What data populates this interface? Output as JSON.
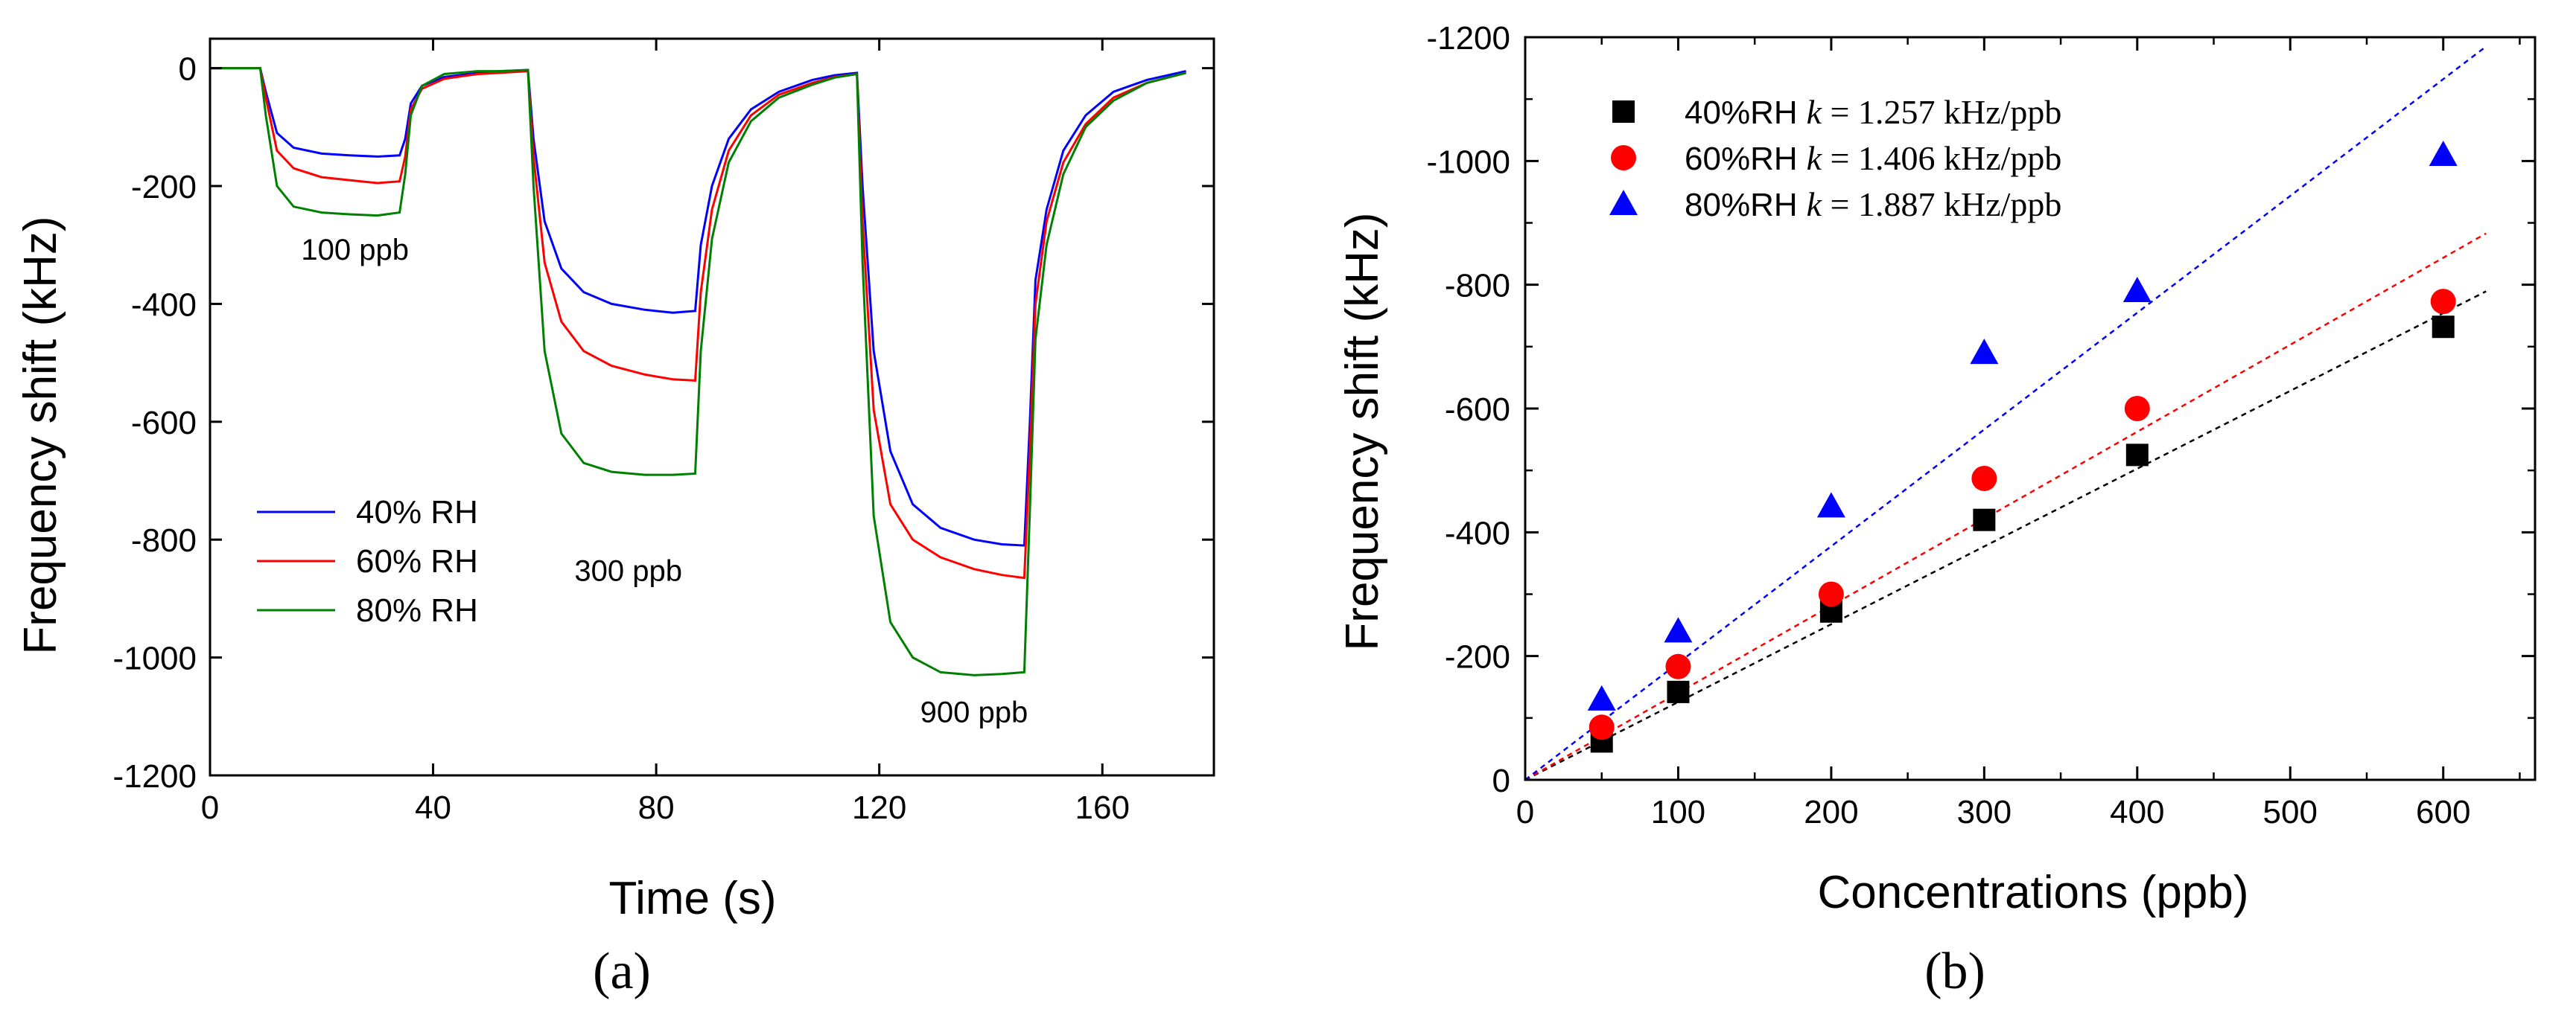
{
  "chart_data": [
    {
      "type": "line",
      "panel_label": "(a)",
      "xlabel": "Time (s)",
      "ylabel": "Frequency shift (kHz)",
      "xlim": [
        0,
        180
      ],
      "ylim": [
        -1200,
        50
      ],
      "xticks": [
        0,
        40,
        80,
        120,
        160
      ],
      "yticks": [
        0,
        -200,
        -400,
        -600,
        -800,
        -1000,
        -1200
      ],
      "grid": false,
      "legend_position": "lower-left",
      "annotations": [
        {
          "text": "100 ppb",
          "x": 26,
          "y": -325
        },
        {
          "text": "300 ppb",
          "x": 75,
          "y": -870
        },
        {
          "text": "900 ppb",
          "x": 137,
          "y": -1110
        }
      ],
      "series": [
        {
          "name": "40% RH",
          "color": "#0000ff",
          "points": [
            [
              0,
              0
            ],
            [
              9,
              0
            ],
            [
              10,
              -40
            ],
            [
              12,
              -110
            ],
            [
              15,
              -135
            ],
            [
              20,
              -145
            ],
            [
              25,
              -148
            ],
            [
              30,
              -150
            ],
            [
              34,
              -148
            ],
            [
              35,
              -120
            ],
            [
              36,
              -60
            ],
            [
              38,
              -30
            ],
            [
              42,
              -15
            ],
            [
              48,
              -8
            ],
            [
              52,
              -5
            ],
            [
              57,
              -3
            ],
            [
              58,
              -120
            ],
            [
              60,
              -260
            ],
            [
              63,
              -340
            ],
            [
              67,
              -380
            ],
            [
              72,
              -400
            ],
            [
              78,
              -410
            ],
            [
              83,
              -415
            ],
            [
              87,
              -412
            ],
            [
              88,
              -300
            ],
            [
              90,
              -200
            ],
            [
              93,
              -120
            ],
            [
              97,
              -70
            ],
            [
              102,
              -40
            ],
            [
              108,
              -20
            ],
            [
              112,
              -12
            ],
            [
              116,
              -8
            ],
            [
              117,
              -200
            ],
            [
              119,
              -480
            ],
            [
              122,
              -650
            ],
            [
              126,
              -740
            ],
            [
              131,
              -780
            ],
            [
              137,
              -800
            ],
            [
              142,
              -808
            ],
            [
              146,
              -810
            ],
            [
              147,
              -600
            ],
            [
              148,
              -360
            ],
            [
              150,
              -240
            ],
            [
              153,
              -140
            ],
            [
              157,
              -80
            ],
            [
              162,
              -40
            ],
            [
              168,
              -20
            ],
            [
              175,
              -5
            ]
          ]
        },
        {
          "name": "60% RH",
          "color": "#ff0000",
          "points": [
            [
              0,
              0
            ],
            [
              9,
              0
            ],
            [
              10,
              -50
            ],
            [
              12,
              -140
            ],
            [
              15,
              -170
            ],
            [
              20,
              -185
            ],
            [
              25,
              -190
            ],
            [
              30,
              -195
            ],
            [
              34,
              -192
            ],
            [
              35,
              -150
            ],
            [
              36,
              -70
            ],
            [
              38,
              -35
            ],
            [
              42,
              -18
            ],
            [
              48,
              -10
            ],
            [
              52,
              -8
            ],
            [
              57,
              -5
            ],
            [
              58,
              -150
            ],
            [
              60,
              -330
            ],
            [
              63,
              -430
            ],
            [
              67,
              -480
            ],
            [
              72,
              -505
            ],
            [
              78,
              -520
            ],
            [
              83,
              -528
            ],
            [
              87,
              -530
            ],
            [
              88,
              -380
            ],
            [
              90,
              -240
            ],
            [
              93,
              -140
            ],
            [
              97,
              -80
            ],
            [
              102,
              -45
            ],
            [
              108,
              -25
            ],
            [
              112,
              -15
            ],
            [
              116,
              -10
            ],
            [
              117,
              -260
            ],
            [
              119,
              -580
            ],
            [
              122,
              -740
            ],
            [
              126,
              -800
            ],
            [
              131,
              -830
            ],
            [
              137,
              -850
            ],
            [
              142,
              -860
            ],
            [
              146,
              -865
            ],
            [
              147,
              -650
            ],
            [
              148,
              -400
            ],
            [
              150,
              -260
            ],
            [
              153,
              -160
            ],
            [
              157,
              -95
            ],
            [
              162,
              -50
            ],
            [
              168,
              -25
            ],
            [
              175,
              -8
            ]
          ]
        },
        {
          "name": "80% RH",
          "color": "#008000",
          "points": [
            [
              0,
              0
            ],
            [
              9,
              0
            ],
            [
              10,
              -80
            ],
            [
              12,
              -200
            ],
            [
              15,
              -235
            ],
            [
              20,
              -245
            ],
            [
              25,
              -248
            ],
            [
              30,
              -250
            ],
            [
              34,
              -245
            ],
            [
              35,
              -180
            ],
            [
              36,
              -80
            ],
            [
              38,
              -30
            ],
            [
              42,
              -10
            ],
            [
              48,
              -5
            ],
            [
              52,
              -5
            ],
            [
              57,
              -3
            ],
            [
              58,
              -200
            ],
            [
              60,
              -480
            ],
            [
              63,
              -620
            ],
            [
              67,
              -670
            ],
            [
              72,
              -685
            ],
            [
              78,
              -690
            ],
            [
              83,
              -690
            ],
            [
              87,
              -688
            ],
            [
              88,
              -480
            ],
            [
              90,
              -290
            ],
            [
              93,
              -160
            ],
            [
              97,
              -90
            ],
            [
              102,
              -50
            ],
            [
              108,
              -28
            ],
            [
              112,
              -16
            ],
            [
              116,
              -10
            ],
            [
              117,
              -330
            ],
            [
              119,
              -760
            ],
            [
              122,
              -940
            ],
            [
              126,
              -1000
            ],
            [
              131,
              -1025
            ],
            [
              137,
              -1030
            ],
            [
              142,
              -1028
            ],
            [
              146,
              -1025
            ],
            [
              147,
              -750
            ],
            [
              148,
              -460
            ],
            [
              150,
              -300
            ],
            [
              153,
              -180
            ],
            [
              157,
              -100
            ],
            [
              162,
              -55
            ],
            [
              168,
              -25
            ],
            [
              175,
              -8
            ]
          ]
        }
      ]
    },
    {
      "type": "scatter",
      "panel_label": "(b)",
      "xlabel": "Concentrations (ppb)",
      "ylabel": "Frequency shift (kHz)",
      "xlim": [
        0,
        660
      ],
      "ylim": [
        0,
        -1200
      ],
      "xticks": [
        0,
        100,
        200,
        300,
        400,
        500,
        600
      ],
      "yticks": [
        0,
        -200,
        -400,
        -600,
        -800,
        -1000,
        -1200
      ],
      "grid": false,
      "legend_position": "top-left",
      "series": [
        {
          "name": "40%RH",
          "legend_fit_var": "k",
          "legend_fit_value": " = 1.257 kHz/ppb",
          "marker": "square",
          "color": "#000000",
          "fit_color": "#000000",
          "fit_slope": -1.257,
          "x": [
            50,
            100,
            200,
            300,
            400,
            600
          ],
          "y": [
            -62,
            -142,
            -272,
            -420,
            -525,
            -732
          ]
        },
        {
          "name": "60%RH",
          "legend_fit_var": "k",
          "legend_fit_value": " = 1.406 kHz/ppb",
          "marker": "circle",
          "color": "#ff0000",
          "fit_color": "#ff0000",
          "fit_slope": -1.406,
          "x": [
            50,
            100,
            200,
            300,
            400,
            600
          ],
          "y": [
            -85,
            -183,
            -300,
            -487,
            -600,
            -773
          ]
        },
        {
          "name": "80%RH",
          "legend_fit_var": "k",
          "legend_fit_value": " = 1.887 kHz/ppb",
          "marker": "triangle",
          "color": "#0000ff",
          "fit_color": "#0000ff",
          "fit_slope": -1.887,
          "x": [
            50,
            100,
            200,
            300,
            400,
            600
          ],
          "y": [
            -130,
            -240,
            -442,
            -690,
            -790,
            -1010
          ]
        }
      ]
    }
  ]
}
